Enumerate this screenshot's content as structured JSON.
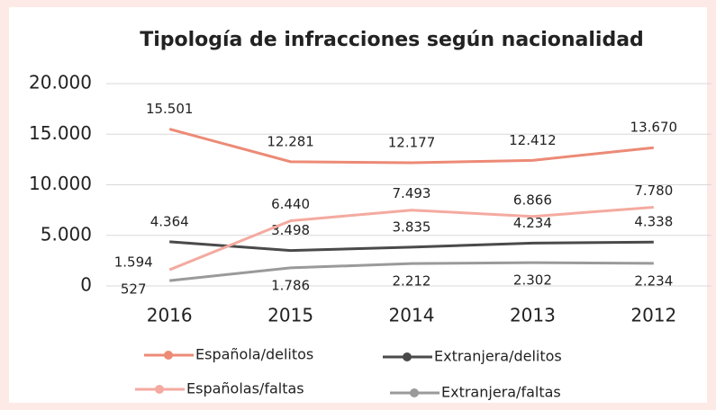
{
  "chart_data": {
    "type": "line",
    "title": "Tipología de infracciones según nacionalidad",
    "categories": [
      "2016",
      "2015",
      "2014",
      "2013",
      "2012"
    ],
    "series": [
      {
        "name": "Española/delitos",
        "color": "#ec8a76",
        "values": [
          15501,
          12281,
          12177,
          12412,
          13670
        ],
        "value_labels": [
          "15.501",
          "12.281",
          "12.177",
          "12.412",
          "13.670"
        ]
      },
      {
        "name": "Extranjera/delitos",
        "color": "#4a4a4a",
        "values": [
          4364,
          3498,
          3835,
          4234,
          4338
        ],
        "value_labels": [
          "4.364",
          "3.498",
          "3.835",
          "4.234",
          "4.338"
        ]
      },
      {
        "name": "Españolas/faltas",
        "color": "#f4aaa0",
        "values": [
          1594,
          6440,
          7493,
          6866,
          7780
        ],
        "value_labels": [
          "1.594",
          "6.440",
          "7.493",
          "6.866",
          "7.780"
        ]
      },
      {
        "name": "Extranjera/faltas",
        "color": "#9a9a9a",
        "values": [
          527,
          1786,
          2212,
          2302,
          2234
        ],
        "value_labels": [
          "527",
          "1.786",
          "2.212",
          "2.302",
          "2.234"
        ]
      }
    ],
    "ylim": [
      0,
      20000
    ],
    "yticks": [
      0,
      {
        "value": 5000,
        "label": "5.000"
      },
      {
        "value": 10000,
        "label": "10.000"
      },
      {
        "value": 15000,
        "label": "15.000"
      },
      {
        "value": 20000,
        "label": "20.000"
      }
    ],
    "grid": true
  }
}
